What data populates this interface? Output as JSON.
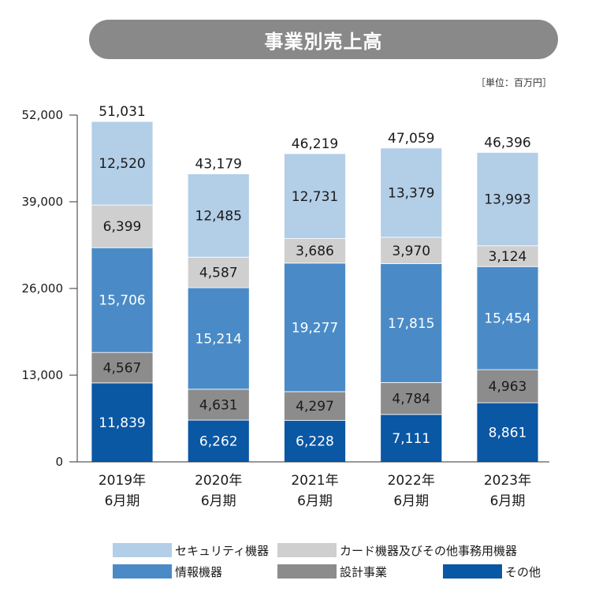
{
  "colors": {
    "title_bg": "#898989",
    "title_text": "#ffffff",
    "axis": "#333333",
    "text": "#1a1a1a"
  },
  "chart_data": {
    "type": "bar",
    "stacked": true,
    "title": "事業別売上高",
    "unit_label": "［単位：百万円］",
    "xlabel": "",
    "ylabel": "",
    "categories": [
      "2019年\n6月期",
      "2020年\n6月期",
      "2021年\n6月期",
      "2022年\n6月期",
      "2023年\n6月期"
    ],
    "ylim": [
      0,
      52000
    ],
    "yticks": [
      0,
      13000,
      26000,
      39000,
      52000
    ],
    "grid": false,
    "series": [
      {
        "name": "その他",
        "values": [
          11839,
          6262,
          6228,
          7111,
          8861
        ],
        "color": "#0a57a4",
        "label_color": "#ffffff"
      },
      {
        "name": "設計事業",
        "values": [
          4567,
          4631,
          4297,
          4784,
          4963
        ],
        "color": "#8c8c8c",
        "label_color": "#1a1a1a"
      },
      {
        "name": "情報機器",
        "values": [
          15706,
          15214,
          19277,
          17815,
          15454
        ],
        "color": "#4a8bc7",
        "label_color": "#ffffff"
      },
      {
        "name": "カード機器及びその他事務用機器",
        "values": [
          6399,
          4587,
          3686,
          3970,
          3124
        ],
        "color": "#cfcfcf",
        "label_color": "#1a1a1a"
      },
      {
        "name": "セキュリティ機器",
        "values": [
          12520,
          12485,
          12731,
          13379,
          13993
        ],
        "color": "#b3cee7",
        "label_color": "#1a1a1a"
      }
    ],
    "totals": [
      51031,
      43179,
      46219,
      47059,
      46396
    ],
    "legend": {
      "position": "bottom",
      "order": [
        4,
        3,
        2,
        1,
        0
      ]
    }
  }
}
